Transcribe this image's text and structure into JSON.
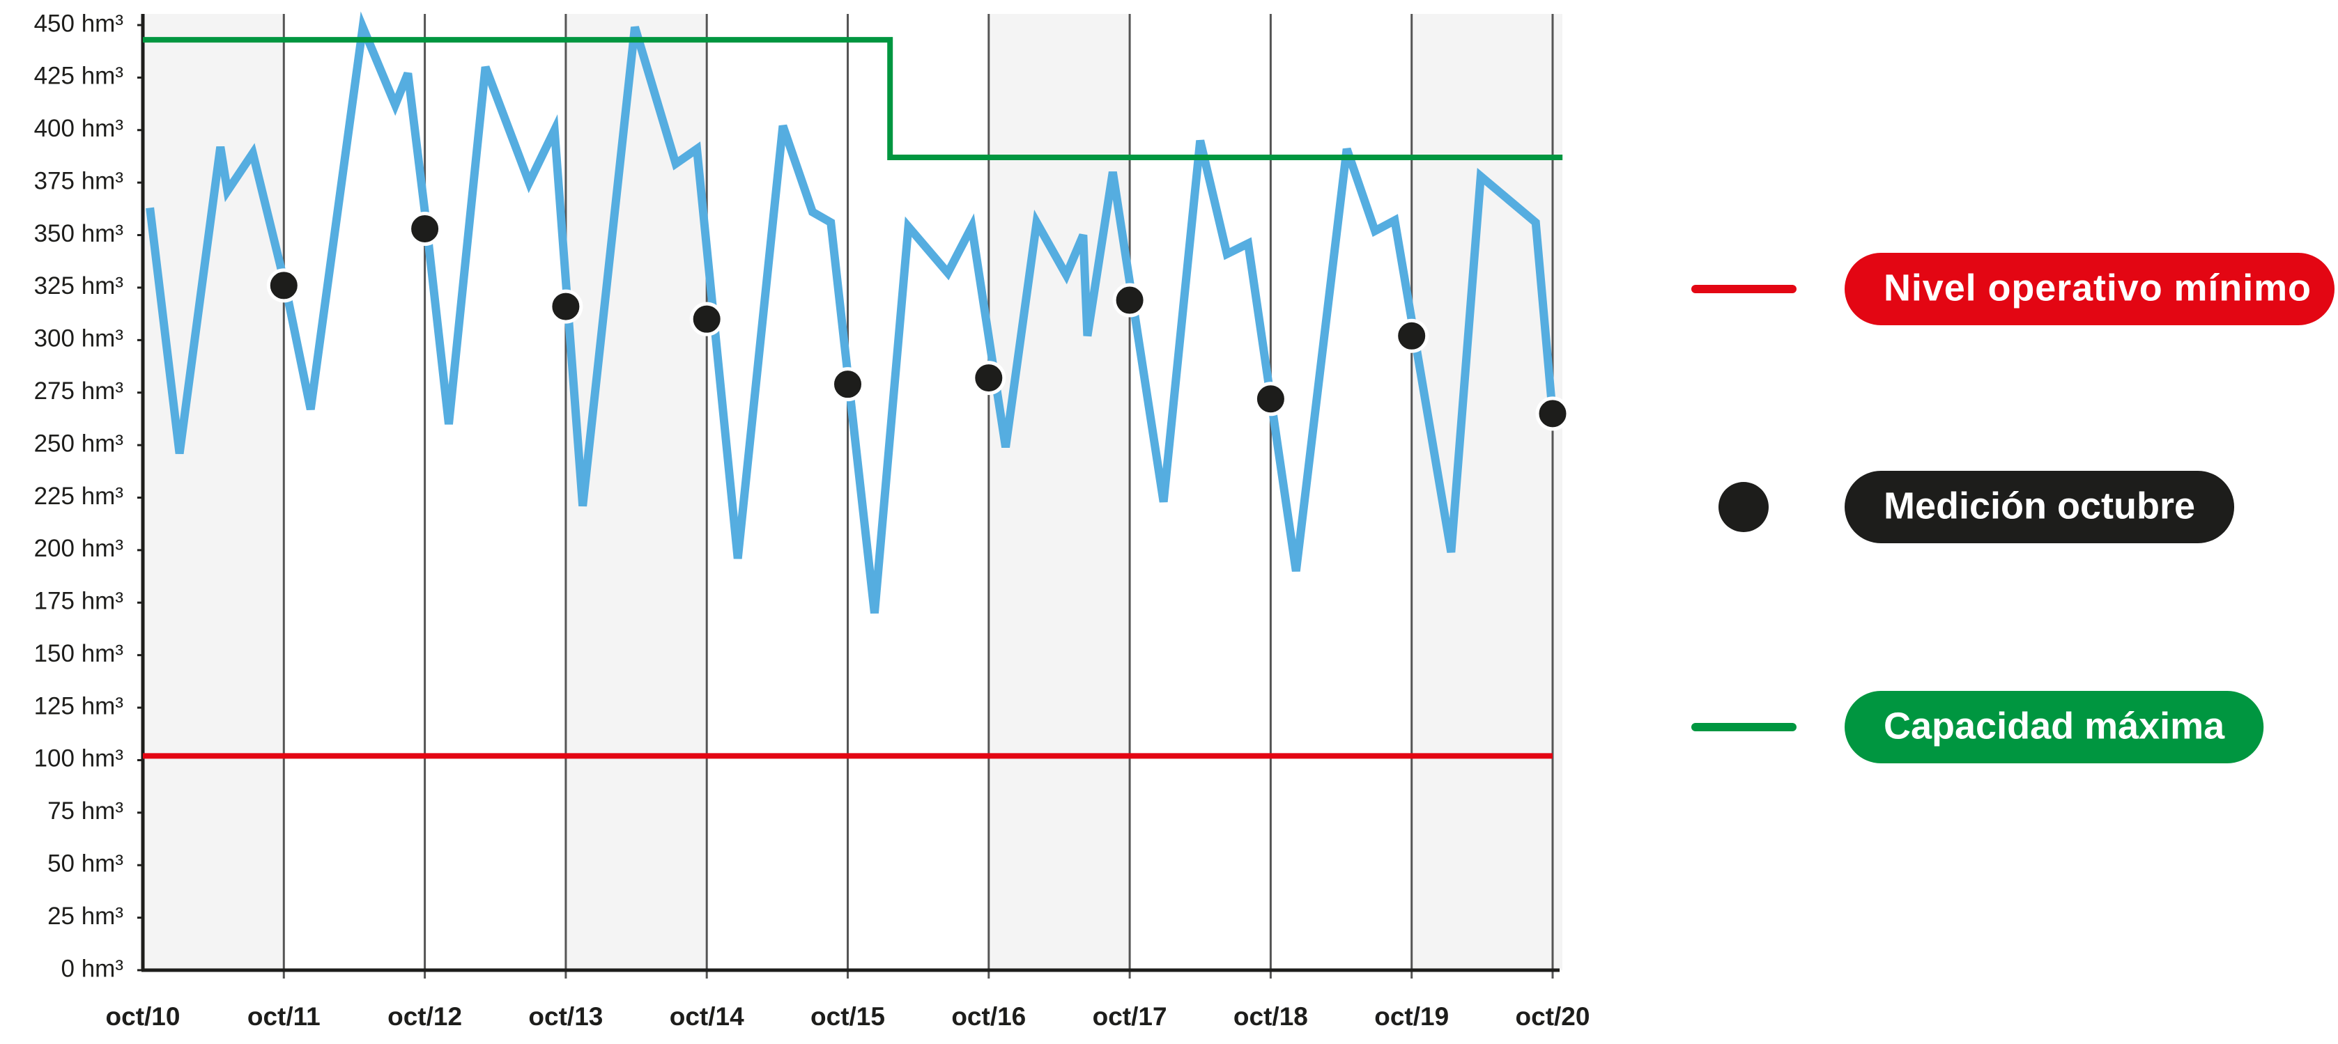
{
  "chart_data": {
    "type": "line",
    "xlim": [
      10,
      20
    ],
    "xticks": [
      {
        "value": 10,
        "label": "oct/10"
      },
      {
        "value": 11,
        "label": "oct/11"
      },
      {
        "value": 12,
        "label": "oct/12"
      },
      {
        "value": 13,
        "label": "oct/13"
      },
      {
        "value": 14,
        "label": "oct/14"
      },
      {
        "value": 15,
        "label": "oct/15"
      },
      {
        "value": 16,
        "label": "oct/16"
      },
      {
        "value": 17,
        "label": "oct/17"
      },
      {
        "value": 18,
        "label": "oct/18"
      },
      {
        "value": 19,
        "label": "oct/19"
      },
      {
        "value": 20,
        "label": "oct/20"
      }
    ],
    "ylim": [
      0,
      450
    ],
    "yticks": [
      {
        "value": 0,
        "label": "0 hm³"
      },
      {
        "value": 25,
        "label": "25 hm³"
      },
      {
        "value": 50,
        "label": "50 hm³"
      },
      {
        "value": 75,
        "label": "75 hm³"
      },
      {
        "value": 100,
        "label": "100 hm³"
      },
      {
        "value": 125,
        "label": "125 hm³"
      },
      {
        "value": 150,
        "label": "150 hm³"
      },
      {
        "value": 175,
        "label": "175 hm³"
      },
      {
        "value": 200,
        "label": "200 hm³"
      },
      {
        "value": 225,
        "label": "225 hm³"
      },
      {
        "value": 250,
        "label": "250 hm³"
      },
      {
        "value": 275,
        "label": "275 hm³"
      },
      {
        "value": 300,
        "label": "300 hm³"
      },
      {
        "value": 325,
        "label": "325 hm³"
      },
      {
        "value": 350,
        "label": "350 hm³"
      },
      {
        "value": 375,
        "label": "375 hm³"
      },
      {
        "value": 400,
        "label": "400 hm³"
      },
      {
        "value": 425,
        "label": "425 hm³"
      },
      {
        "value": 450,
        "label": "450 hm³"
      }
    ],
    "grid": true,
    "legend": "right",
    "series": [
      {
        "color": "#55ade0",
        "mark": "line",
        "x": [
          10.05,
          10.26,
          10.55,
          10.6,
          10.78,
          11.01,
          11.19,
          11.56,
          11.79,
          11.88,
          12.01,
          12.17,
          12.43,
          12.74,
          12.92,
          13.12,
          13.49,
          13.78,
          13.93,
          14.22,
          14.54,
          14.75,
          14.88,
          15.19,
          15.43,
          15.71,
          15.88,
          16.12,
          16.34,
          16.55,
          16.67,
          16.7,
          16.88,
          17.24,
          17.5,
          17.69,
          17.84,
          18.18,
          18.54,
          18.74,
          18.88,
          19.28,
          19.49,
          19.88,
          20
        ],
        "values": [
          363,
          246,
          392,
          371,
          389,
          326,
          267,
          449,
          412,
          427,
          356,
          260,
          430,
          375,
          400,
          221,
          449,
          384,
          391,
          196,
          402,
          361,
          356,
          170,
          354,
          332,
          354,
          249,
          356,
          331,
          350,
          302,
          380,
          223,
          395,
          341,
          346,
          190,
          391,
          352,
          357,
          199,
          378,
          356,
          265
        ]
      },
      {
        "name": "Nivel operativo mínimo",
        "color": "#e30613",
        "mark": "line",
        "x": [
          10,
          20
        ],
        "values": [
          102,
          102
        ]
      },
      {
        "name": "Medición octubre",
        "color": "#1d1d1b",
        "mark": "dots",
        "x": [
          11,
          12,
          13,
          14,
          15,
          16,
          17,
          18,
          19,
          20
        ],
        "values": [
          326,
          353,
          316,
          310,
          279,
          282,
          319,
          272,
          302,
          265
        ]
      },
      {
        "name": "Capacidad máxima",
        "color": "#009640",
        "mark": "line",
        "x": [
          10,
          15.3,
          15.3,
          20.07
        ],
        "values": [
          443,
          443,
          387,
          387
        ]
      }
    ]
  }
}
